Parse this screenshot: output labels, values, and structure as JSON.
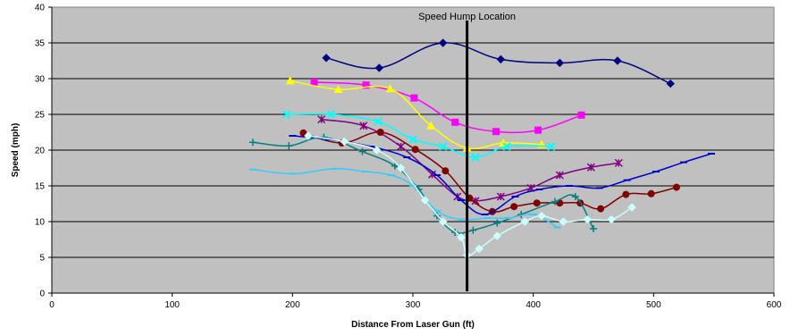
{
  "chart_data": {
    "type": "line",
    "title": "",
    "xlabel": "Distance From Laser Gun (ft)",
    "ylabel": "Speed (mph)",
    "xlim": [
      0,
      600
    ],
    "ylim": [
      0,
      40
    ],
    "xticks": [
      0,
      100,
      200,
      300,
      400,
      500,
      600
    ],
    "yticks": [
      0,
      5,
      10,
      15,
      20,
      25,
      30,
      35,
      40
    ],
    "grid": "horizontal",
    "legend": "none",
    "plot_background": "#c0c0c0",
    "annotations": [
      {
        "text": "Speed Hump Location",
        "x": 345,
        "type": "vertical-line"
      }
    ],
    "series": [
      {
        "color": "#000080",
        "marker": "diamond",
        "points": [
          [
            228,
            32.9
          ],
          [
            272,
            31.5
          ],
          [
            325,
            35.0
          ],
          [
            373,
            32.7
          ],
          [
            422,
            32.2
          ],
          [
            470,
            32.5
          ],
          [
            514,
            29.3
          ]
        ]
      },
      {
        "color": "#ff00ff",
        "marker": "square",
        "points": [
          [
            218,
            29.5
          ],
          [
            261,
            29.1
          ],
          [
            301,
            27.3
          ],
          [
            335,
            23.9
          ],
          [
            369,
            22.6
          ],
          [
            404,
            22.8
          ],
          [
            440,
            24.9
          ]
        ]
      },
      {
        "color": "#ffff00",
        "marker": "triangle",
        "points": [
          [
            198,
            29.7
          ],
          [
            238,
            28.5
          ],
          [
            281,
            28.6
          ],
          [
            315,
            23.4
          ],
          [
            345,
            20.3
          ],
          [
            375,
            21.0
          ],
          [
            407,
            20.8
          ]
        ]
      },
      {
        "color": "#00ffff",
        "marker": "x",
        "points": [
          [
            195,
            25.0
          ],
          [
            232,
            25.0
          ],
          [
            271,
            24.0
          ],
          [
            300,
            21.5
          ],
          [
            325,
            20.5
          ],
          [
            352,
            19.0
          ],
          [
            378,
            20.5
          ],
          [
            415,
            20.5
          ]
        ]
      },
      {
        "color": "#800080",
        "marker": "star",
        "points": [
          [
            224,
            24.3
          ],
          [
            259,
            23.4
          ],
          [
            290,
            20.5
          ],
          [
            316,
            16.6
          ],
          [
            337,
            13.5
          ],
          [
            352,
            12.9
          ],
          [
            373,
            13.5
          ],
          [
            398,
            14.7
          ],
          [
            422,
            16.5
          ],
          [
            448,
            17.6
          ],
          [
            471,
            18.2
          ]
        ]
      },
      {
        "color": "#800000",
        "marker": "circle",
        "points": [
          [
            209,
            22.4
          ],
          [
            241,
            21.0
          ],
          [
            273,
            22.5
          ],
          [
            302,
            20.1
          ],
          [
            327,
            17.1
          ],
          [
            347,
            13.3
          ],
          [
            366,
            11.4
          ],
          [
            384,
            12.1
          ],
          [
            403,
            12.6
          ],
          [
            422,
            12.6
          ],
          [
            439,
            12.6
          ],
          [
            456,
            11.8
          ],
          [
            477,
            13.8
          ],
          [
            498,
            13.9
          ],
          [
            519,
            14.8
          ]
        ]
      },
      {
        "color": "#0000cc",
        "marker": "dash",
        "points": [
          [
            200,
            22.0
          ],
          [
            230,
            21.5
          ],
          [
            265,
            20.5
          ],
          [
            295,
            19.0
          ],
          [
            320,
            16.5
          ],
          [
            340,
            13.0
          ],
          [
            360,
            11.0
          ],
          [
            385,
            13.5
          ],
          [
            405,
            14.5
          ],
          [
            430,
            15.0
          ],
          [
            455,
            14.7
          ],
          [
            478,
            15.8
          ],
          [
            502,
            17.0
          ],
          [
            525,
            18.3
          ],
          [
            548,
            19.5
          ]
        ]
      },
      {
        "color": "#008080",
        "marker": "plus",
        "points": [
          [
            167,
            21.1
          ],
          [
            197,
            20.6
          ],
          [
            226,
            21.8
          ],
          [
            258,
            19.8
          ],
          [
            285,
            17.8
          ],
          [
            305,
            14.5
          ],
          [
            320,
            10.8
          ],
          [
            335,
            8.5
          ],
          [
            350,
            8.8
          ],
          [
            370,
            9.8
          ],
          [
            390,
            11.0
          ],
          [
            418,
            12.8
          ],
          [
            435,
            13.5
          ],
          [
            450,
            9.0
          ]
        ]
      },
      {
        "color": "#33ccff",
        "marker": "dash",
        "points": [
          [
            167,
            17.3
          ],
          [
            200,
            16.7
          ],
          [
            235,
            17.4
          ],
          [
            260,
            17.0
          ],
          [
            282,
            16.5
          ],
          [
            300,
            15.0
          ],
          [
            320,
            11.5
          ],
          [
            340,
            10.3
          ],
          [
            362,
            10.5
          ],
          [
            380,
            10.5
          ],
          [
            400,
            11.0
          ],
          [
            420,
            9.2
          ]
        ]
      },
      {
        "color": "#ccffff",
        "marker": "diamond",
        "points": [
          [
            213,
            22.0
          ],
          [
            243,
            21.2
          ],
          [
            270,
            20.0
          ],
          [
            290,
            17.5
          ],
          [
            310,
            13.0
          ],
          [
            325,
            10.0
          ],
          [
            340,
            7.8
          ],
          [
            345,
            5.3
          ],
          [
            355,
            6.2
          ],
          [
            370,
            8.0
          ],
          [
            393,
            10.0
          ],
          [
            407,
            10.8
          ],
          [
            425,
            10.0
          ],
          [
            445,
            10.3
          ],
          [
            465,
            10.3
          ],
          [
            482,
            12.0
          ]
        ]
      }
    ]
  }
}
